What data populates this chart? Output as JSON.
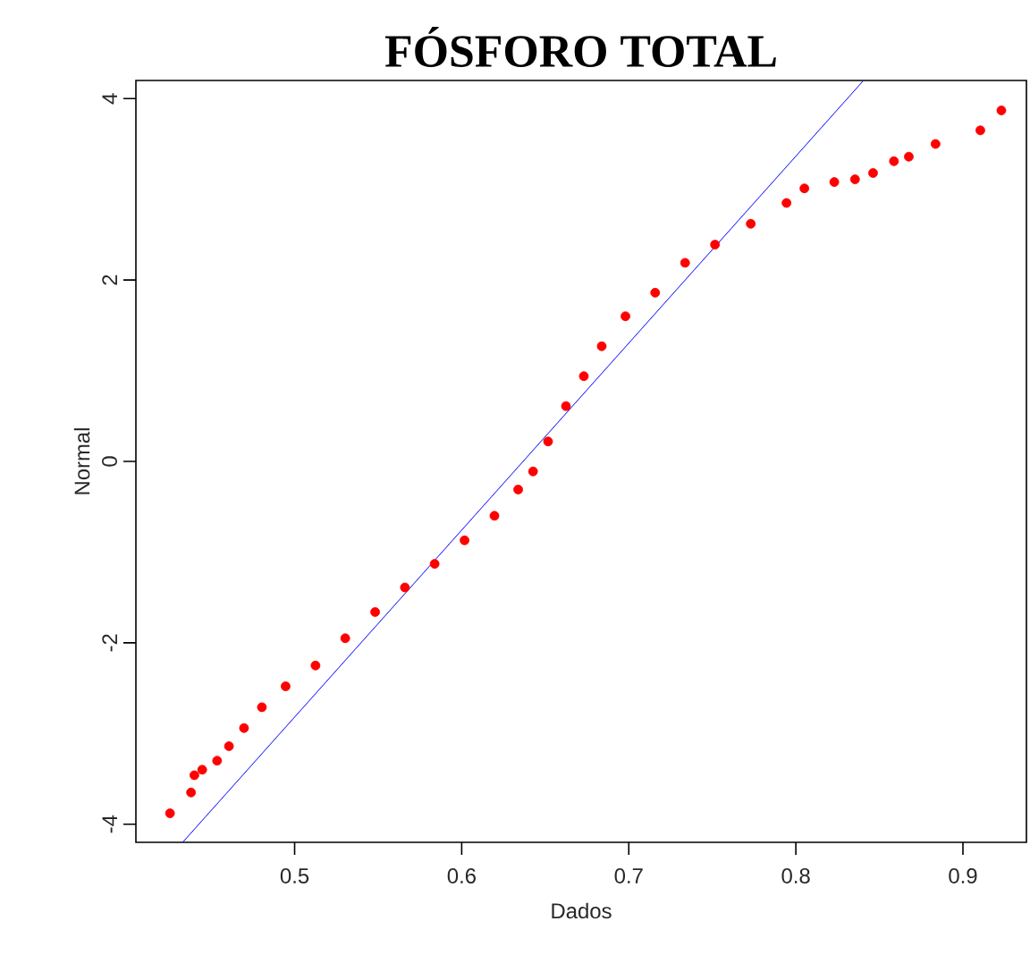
{
  "chart_data": {
    "type": "scatter",
    "title": "FÓSFORO TOTAL",
    "xlabel": "Dados",
    "ylabel": "Normal",
    "xlim": [
      0.405,
      0.938
    ],
    "ylim": [
      -4.2,
      4.2
    ],
    "xticks": [
      0.5,
      0.6,
      0.7,
      0.8,
      0.9
    ],
    "yticks": [
      -4,
      -2,
      0,
      2,
      4
    ],
    "series": [
      {
        "color": "#ff0000",
        "marker": "circle",
        "x": [
          0.4254,
          0.438,
          0.44,
          0.4447,
          0.4536,
          0.4607,
          0.4697,
          0.4804,
          0.4946,
          0.5125,
          0.5303,
          0.5482,
          0.566,
          0.5838,
          0.6017,
          0.6196,
          0.6338,
          0.6427,
          0.6517,
          0.6624,
          0.6731,
          0.6838,
          0.698,
          0.7158,
          0.7337,
          0.7516,
          0.773,
          0.7944,
          0.8051,
          0.823,
          0.8354,
          0.8462,
          0.8587,
          0.8676,
          0.8836,
          0.9104,
          0.923
        ],
        "values": [
          -3.88,
          -3.65,
          -3.46,
          -3.4,
          -3.3,
          -3.14,
          -2.94,
          -2.71,
          -2.48,
          -2.25,
          -1.95,
          -1.66,
          -1.39,
          -1.13,
          -0.87,
          -0.6,
          -0.31,
          -0.11,
          0.22,
          0.61,
          0.94,
          1.27,
          1.6,
          1.86,
          2.19,
          2.39,
          2.62,
          2.85,
          3.01,
          3.08,
          3.11,
          3.18,
          3.31,
          3.36,
          3.5,
          3.65,
          3.87
        ]
      },
      {
        "type": "line",
        "color": "#0000ff",
        "marker": "none",
        "line_style": "solid",
        "x": [
          0.433,
          0.84
        ],
        "values": [
          -4.2,
          4.19
        ]
      }
    ]
  }
}
